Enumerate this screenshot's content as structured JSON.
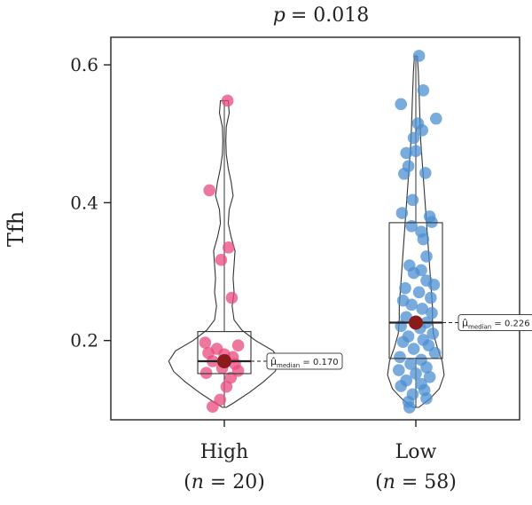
{
  "chart_data": {
    "type": "violin-box-scatter",
    "title_prefix": "p",
    "title_value": "= 0.018",
    "ylabel": "Tfh",
    "ylim": [
      0.085,
      0.64
    ],
    "yticks": [
      {
        "value": 0.2,
        "label": "0.2"
      },
      {
        "value": 0.4,
        "label": "0.4"
      },
      {
        "value": 0.6,
        "label": "0.6"
      }
    ],
    "groups": [
      {
        "name": "High",
        "n_label": "(n = 20)",
        "n_prefix": "(",
        "n_var": "n",
        "n_suffix": " = 20)",
        "color": "#e8497d",
        "box": {
          "q1": 0.152,
          "median": 0.17,
          "q3": 0.213,
          "whisker_low": 0.103,
          "whisker_high": 0.548
        },
        "median_label": "median",
        "median_value": "= 0.170",
        "points": [
          [
            0.03,
            0.548
          ],
          [
            -0.14,
            0.418
          ],
          [
            0.04,
            0.335
          ],
          [
            -0.03,
            0.317
          ],
          [
            0.07,
            0.262
          ],
          [
            -0.18,
            0.197
          ],
          [
            0.13,
            0.193
          ],
          [
            -0.07,
            0.188
          ],
          [
            0.08,
            0.176
          ],
          [
            -0.15,
            0.182
          ],
          [
            0.0,
            0.18
          ],
          [
            -0.11,
            0.17
          ],
          [
            0.1,
            0.166
          ],
          [
            -0.02,
            0.16
          ],
          [
            0.13,
            0.156
          ],
          [
            -0.17,
            0.153
          ],
          [
            0.06,
            0.146
          ],
          [
            0.02,
            0.133
          ],
          [
            -0.04,
            0.114
          ],
          [
            -0.11,
            0.104
          ]
        ],
        "violin": [
          [
            0.103,
            0.02
          ],
          [
            0.11,
            0.1
          ],
          [
            0.125,
            0.26
          ],
          [
            0.14,
            0.4
          ],
          [
            0.155,
            0.52
          ],
          [
            0.17,
            0.57
          ],
          [
            0.185,
            0.5
          ],
          [
            0.2,
            0.32
          ],
          [
            0.215,
            0.18
          ],
          [
            0.23,
            0.1
          ],
          [
            0.25,
            0.08
          ],
          [
            0.27,
            0.1
          ],
          [
            0.29,
            0.09
          ],
          [
            0.31,
            0.1
          ],
          [
            0.33,
            0.11
          ],
          [
            0.35,
            0.07
          ],
          [
            0.37,
            0.04
          ],
          [
            0.39,
            0.05
          ],
          [
            0.41,
            0.09
          ],
          [
            0.43,
            0.07
          ],
          [
            0.45,
            0.04
          ],
          [
            0.47,
            0.02
          ],
          [
            0.49,
            0.015
          ],
          [
            0.51,
            0.02
          ],
          [
            0.53,
            0.05
          ],
          [
            0.548,
            0.04
          ]
        ]
      },
      {
        "name": "Low",
        "n_label": "(n = 58)",
        "n_prefix": "(",
        "n_var": "n",
        "n_suffix": " = 58)",
        "color": "#4c8fd1",
        "box": {
          "q1": 0.174,
          "median": 0.226,
          "q3": 0.371,
          "whisker_low": 0.103,
          "whisker_high": 0.613
        },
        "median_label": "median",
        "median_value": "= 0.226",
        "points": [
          [
            0.03,
            0.613
          ],
          [
            0.07,
            0.563
          ],
          [
            -0.14,
            0.543
          ],
          [
            0.19,
            0.522
          ],
          [
            0.02,
            0.515
          ],
          [
            0.06,
            0.505
          ],
          [
            -0.02,
            0.494
          ],
          [
            0.0,
            0.475
          ],
          [
            -0.09,
            0.472
          ],
          [
            -0.07,
            0.453
          ],
          [
            0.09,
            0.443
          ],
          [
            -0.11,
            0.442
          ],
          [
            -0.03,
            0.404
          ],
          [
            -0.13,
            0.385
          ],
          [
            0.15,
            0.372
          ],
          [
            0.13,
            0.38
          ],
          [
            -0.04,
            0.366
          ],
          [
            0.05,
            0.358
          ],
          [
            0.07,
            0.347
          ],
          [
            0.1,
            0.322
          ],
          [
            -0.06,
            0.309
          ],
          [
            0.05,
            0.302
          ],
          [
            -0.02,
            0.298
          ],
          [
            0.1,
            0.287
          ],
          [
            0.17,
            0.281
          ],
          [
            -0.1,
            0.276
          ],
          [
            0.03,
            0.27
          ],
          [
            0.14,
            0.262
          ],
          [
            -0.12,
            0.258
          ],
          [
            -0.04,
            0.252
          ],
          [
            0.06,
            0.246
          ],
          [
            0.15,
            0.24
          ],
          [
            -0.09,
            0.234
          ],
          [
            0.1,
            0.226
          ],
          [
            -0.14,
            0.221
          ],
          [
            0.04,
            0.218
          ],
          [
            0.16,
            0.21
          ],
          [
            -0.07,
            0.206
          ],
          [
            0.07,
            0.201
          ],
          [
            -0.12,
            0.198
          ],
          [
            0.12,
            0.193
          ],
          [
            -0.02,
            0.188
          ],
          [
            0.18,
            0.182
          ],
          [
            -0.15,
            0.176
          ],
          [
            0.05,
            0.172
          ],
          [
            -0.05,
            0.166
          ],
          [
            0.1,
            0.161
          ],
          [
            -0.16,
            0.157
          ],
          [
            0.0,
            0.152
          ],
          [
            0.13,
            0.147
          ],
          [
            -0.09,
            0.142
          ],
          [
            0.05,
            0.137
          ],
          [
            -0.14,
            0.134
          ],
          [
            0.08,
            0.128
          ],
          [
            -0.03,
            0.122
          ],
          [
            0.1,
            0.116
          ],
          [
            -0.07,
            0.111
          ],
          [
            -0.06,
            0.103
          ]
        ],
        "violin": [
          [
            0.103,
            0.03
          ],
          [
            0.115,
            0.14
          ],
          [
            0.13,
            0.24
          ],
          [
            0.15,
            0.29
          ],
          [
            0.17,
            0.27
          ],
          [
            0.19,
            0.22
          ],
          [
            0.21,
            0.18
          ],
          [
            0.23,
            0.17
          ],
          [
            0.25,
            0.17
          ],
          [
            0.27,
            0.16
          ],
          [
            0.29,
            0.15
          ],
          [
            0.31,
            0.14
          ],
          [
            0.33,
            0.13
          ],
          [
            0.35,
            0.12
          ],
          [
            0.37,
            0.11
          ],
          [
            0.39,
            0.1
          ],
          [
            0.41,
            0.09
          ],
          [
            0.43,
            0.08
          ],
          [
            0.45,
            0.07
          ],
          [
            0.47,
            0.06
          ],
          [
            0.49,
            0.05
          ],
          [
            0.51,
            0.045
          ],
          [
            0.53,
            0.04
          ],
          [
            0.55,
            0.035
          ],
          [
            0.57,
            0.03
          ],
          [
            0.59,
            0.025
          ],
          [
            0.613,
            0.015
          ]
        ]
      }
    ]
  }
}
